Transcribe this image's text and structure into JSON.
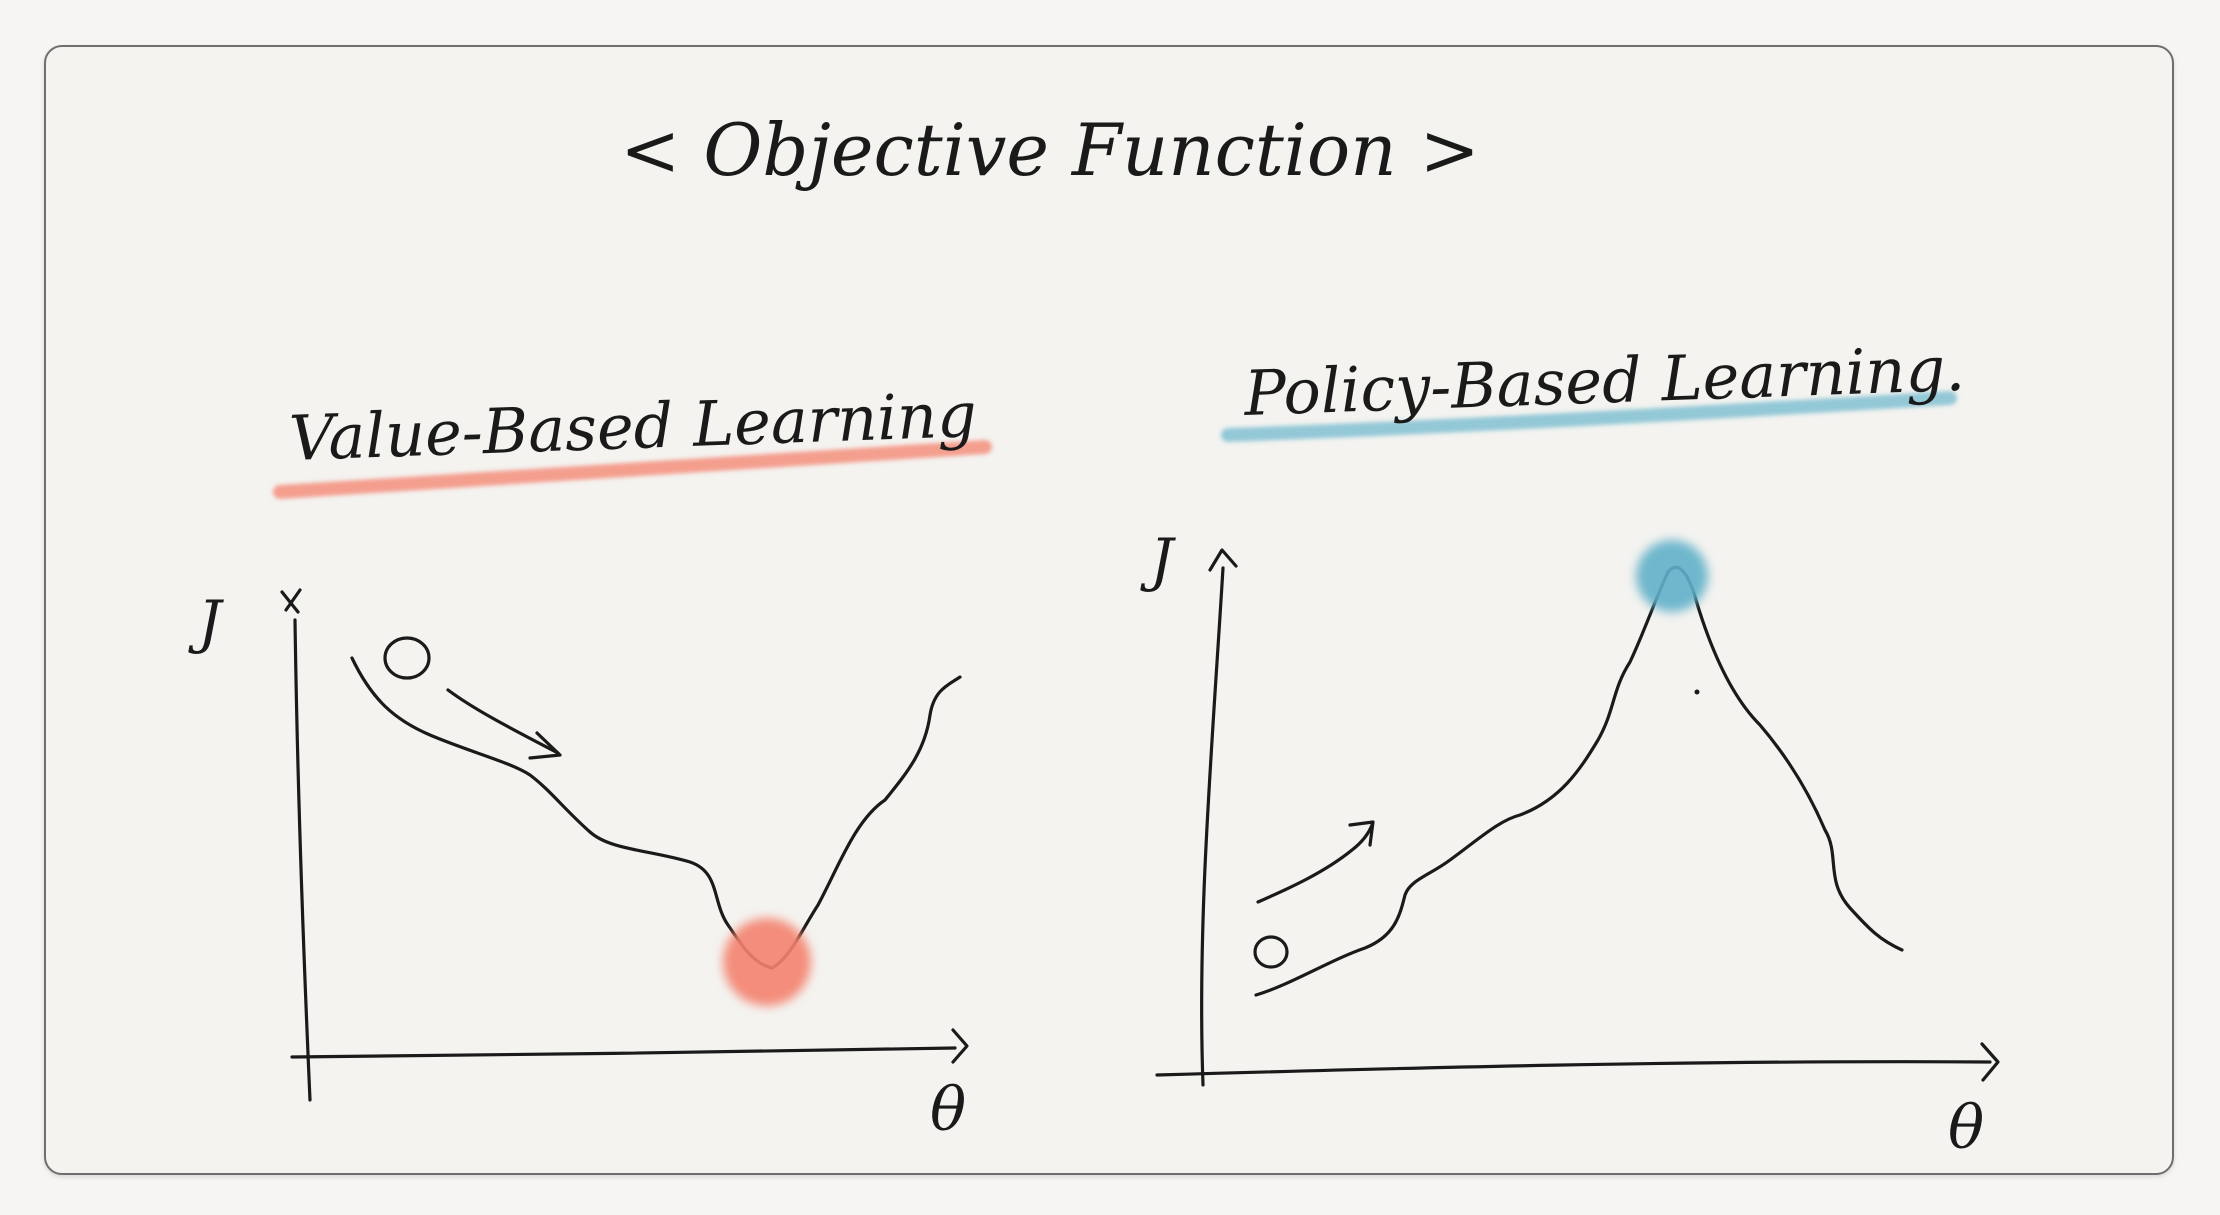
{
  "title": "< Objective Function >",
  "panels": [
    {
      "heading": "Value-Based Learning",
      "highlight_color": "#f4826e",
      "y_axis_label": "J",
      "x_axis_label": "θ",
      "extremum": "minimum"
    },
    {
      "heading": "Policy-Based Learning.",
      "highlight_color": "#5fb0c9",
      "y_axis_label": "J",
      "x_axis_label": "θ",
      "extremum": "maximum"
    }
  ],
  "colors": {
    "ink": "#1a1a1a",
    "board": "#f4f3f0",
    "border": "#6e6e6e"
  }
}
